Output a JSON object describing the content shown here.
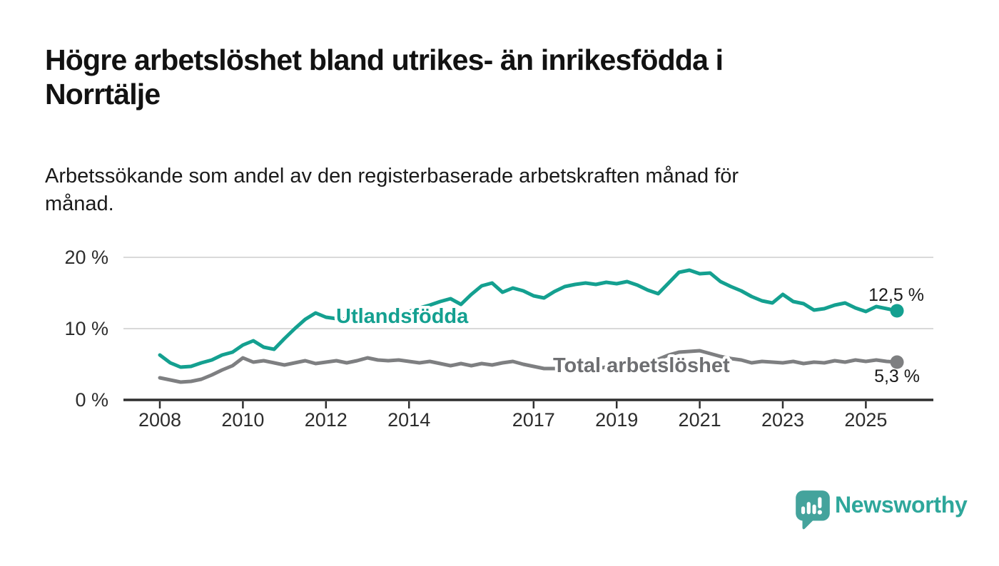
{
  "header": {
    "title_lines": [
      "Högre arbetslöshet bland utrikes- än inrikesfödda i",
      "Norrtälje"
    ],
    "subtitle_lines": [
      "Arbetssökande som andel av den registerbaserade arbetskraften månad för",
      "månad."
    ]
  },
  "chart_data": {
    "type": "line",
    "title": "Arbetssökande som andel av den registerbaserade arbetskraften månad för månad",
    "xlabel": "",
    "ylabel": "",
    "y_unit": "%",
    "ylim": [
      0,
      20
    ],
    "grid": "horizontal",
    "legend_position": "inline-labels",
    "y_ticks": [
      {
        "value": 0,
        "label": "0 %"
      },
      {
        "value": 10,
        "label": "10 %"
      },
      {
        "value": 20,
        "label": "20 %"
      }
    ],
    "x_ticks": [
      {
        "value": 2008,
        "label": "2008"
      },
      {
        "value": 2010,
        "label": "2010"
      },
      {
        "value": 2012,
        "label": "2012"
      },
      {
        "value": 2014,
        "label": "2014"
      },
      {
        "value": 2017,
        "label": "2017"
      },
      {
        "value": 2019,
        "label": "2019"
      },
      {
        "value": 2021,
        "label": "2021"
      },
      {
        "value": 2023,
        "label": "2023"
      },
      {
        "value": 2025,
        "label": "2025"
      }
    ],
    "x": [
      2008.0,
      2008.25,
      2008.5,
      2008.75,
      2009.0,
      2009.25,
      2009.5,
      2009.75,
      2010.0,
      2010.25,
      2010.5,
      2010.75,
      2011.0,
      2011.25,
      2011.5,
      2011.75,
      2012.0,
      2012.25,
      2012.5,
      2012.75,
      2013.0,
      2013.25,
      2013.5,
      2013.75,
      2014.0,
      2014.25,
      2014.5,
      2014.75,
      2015.0,
      2015.25,
      2015.5,
      2015.75,
      2016.0,
      2016.25,
      2016.5,
      2016.75,
      2017.0,
      2017.25,
      2017.5,
      2017.75,
      2018.0,
      2018.25,
      2018.5,
      2018.75,
      2019.0,
      2019.25,
      2019.5,
      2019.75,
      2020.0,
      2020.25,
      2020.5,
      2020.75,
      2021.0,
      2021.25,
      2021.5,
      2021.75,
      2022.0,
      2022.25,
      2022.5,
      2022.75,
      2023.0,
      2023.25,
      2023.5,
      2023.75,
      2024.0,
      2024.25,
      2024.5,
      2024.75,
      2025.0,
      2025.25,
      2025.5,
      2025.75
    ],
    "series": [
      {
        "name": "Utlandsfödda",
        "color": "#14a090",
        "label_color": "#14a090",
        "end_label": "12,5 %",
        "end_value": 12.5,
        "values": [
          6.3,
          5.2,
          4.6,
          4.7,
          5.2,
          5.6,
          6.3,
          6.7,
          7.7,
          8.3,
          7.4,
          7.1,
          8.6,
          10.0,
          11.3,
          12.2,
          11.6,
          11.4,
          11.3,
          11.4,
          11.5,
          11.7,
          11.9,
          12.1,
          12.4,
          12.9,
          13.3,
          13.8,
          14.2,
          13.4,
          14.8,
          16.0,
          16.4,
          15.1,
          15.7,
          15.3,
          14.6,
          14.3,
          15.2,
          15.9,
          16.2,
          16.4,
          16.2,
          16.5,
          16.3,
          16.6,
          16.1,
          15.4,
          14.9,
          16.4,
          17.9,
          18.2,
          17.7,
          17.8,
          16.6,
          15.9,
          15.3,
          14.5,
          13.9,
          13.6,
          14.8,
          13.8,
          13.5,
          12.6,
          12.8,
          13.3,
          13.6,
          12.9,
          12.4,
          13.1,
          12.8,
          12.5
        ]
      },
      {
        "name": "Total arbetslöshet",
        "color": "#7e7f81",
        "label_color": "#6e6f72",
        "end_label": "5,3 %",
        "end_value": 5.3,
        "values": [
          3.1,
          2.8,
          2.5,
          2.6,
          2.9,
          3.5,
          4.2,
          4.8,
          5.9,
          5.3,
          5.5,
          5.2,
          4.9,
          5.2,
          5.5,
          5.1,
          5.3,
          5.5,
          5.2,
          5.5,
          5.9,
          5.6,
          5.5,
          5.6,
          5.4,
          5.2,
          5.4,
          5.1,
          4.8,
          5.1,
          4.8,
          5.1,
          4.9,
          5.2,
          5.4,
          5.0,
          4.7,
          4.4,
          4.4,
          4.3,
          4.4,
          4.3,
          4.4,
          4.6,
          4.7,
          4.8,
          5.0,
          5.3,
          5.7,
          6.3,
          6.7,
          6.8,
          6.9,
          6.5,
          6.1,
          5.8,
          5.6,
          5.2,
          5.4,
          5.3,
          5.2,
          5.4,
          5.1,
          5.3,
          5.2,
          5.5,
          5.3,
          5.6,
          5.4,
          5.6,
          5.4,
          5.3
        ]
      }
    ]
  },
  "branding": {
    "logo_text": "Newsworthy",
    "logo_color": "#2ea79b",
    "icon_color": "#44a39c"
  }
}
